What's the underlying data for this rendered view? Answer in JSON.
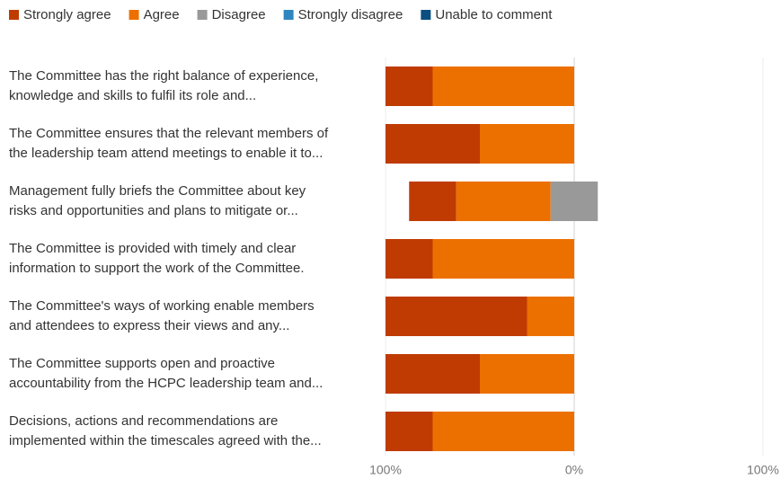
{
  "chart_data": {
    "type": "diverging_bar",
    "categories": [
      [
        "The Committee has the right balance of experience,",
        "knowledge and skills to fulfil its role and..."
      ],
      [
        "The Committee ensures that the relevant members of",
        "the leadership team attend meetings to enable it to..."
      ],
      [
        "Management fully briefs the Committee about key",
        "risks and opportunities and plans to mitigate or..."
      ],
      [
        "The Committee is provided with timely and clear",
        "information to support the work of the Committee."
      ],
      [
        "The Committee's ways of working enable members",
        "and attendees to express their views and any..."
      ],
      [
        "The Committee supports open and proactive",
        "accountability from the HCPC leadership team and..."
      ],
      [
        "Decisions, actions and recommendations are",
        "implemented within the timescales agreed with the..."
      ]
    ],
    "series": [
      {
        "name": "Strongly agree",
        "color": "#bf3b02",
        "side": "agree",
        "values": [
          25,
          50,
          25,
          25,
          75,
          50,
          25
        ]
      },
      {
        "name": "Agree",
        "color": "#ec7000",
        "side": "agree",
        "values": [
          75,
          50,
          50,
          75,
          25,
          50,
          75
        ]
      },
      {
        "name": "Disagree",
        "color": "#999999",
        "side": "disagree",
        "values": [
          0,
          0,
          25,
          0,
          0,
          0,
          0
        ]
      },
      {
        "name": "Strongly disagree",
        "color": "#2e86c1",
        "side": "disagree",
        "values": [
          0,
          0,
          0,
          0,
          0,
          0,
          0
        ]
      },
      {
        "name": "Unable to comment",
        "color": "#0b4e80",
        "side": "disagree",
        "values": [
          0,
          0,
          0,
          0,
          0,
          0,
          0
        ]
      }
    ],
    "xlim": [
      -100,
      100
    ],
    "xticks": [
      {
        "value": -100,
        "label": "100%"
      },
      {
        "value": 0,
        "label": "0%"
      },
      {
        "value": 100,
        "label": "100%"
      }
    ],
    "grid": true,
    "legend": "top"
  }
}
